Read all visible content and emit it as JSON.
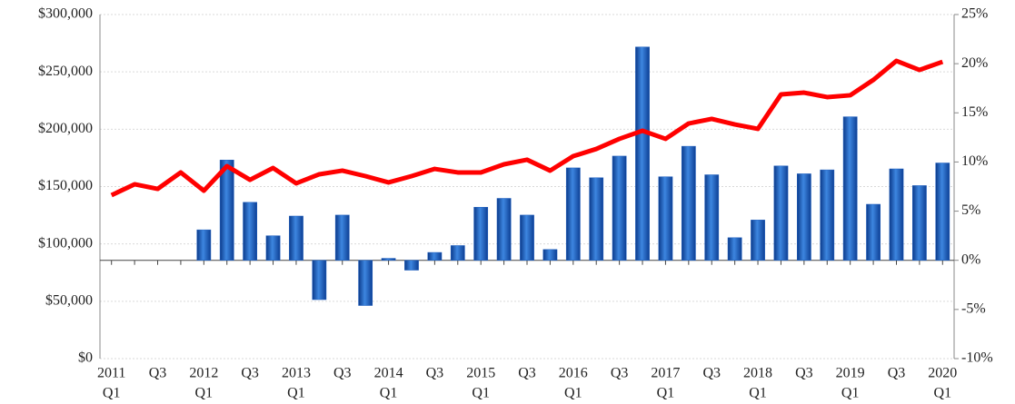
{
  "chart_data": {
    "type": "bar-line",
    "categories": [
      "Q1",
      null,
      "Q3",
      null,
      "Q1",
      null,
      "Q3",
      null,
      "Q1",
      null,
      "Q3",
      null,
      "Q1",
      null,
      "Q3",
      null,
      "Q1",
      null,
      "Q3",
      null,
      "Q1",
      null,
      "Q3",
      null,
      "Q1",
      null,
      "Q3",
      null,
      "Q1",
      null,
      "Q3",
      null,
      "Q1",
      null,
      "Q3",
      null,
      "Q1"
    ],
    "year_labels": [
      "2011",
      null,
      null,
      null,
      "2012",
      null,
      null,
      null,
      "2013",
      null,
      null,
      null,
      "2014",
      null,
      null,
      null,
      "2015",
      null,
      null,
      null,
      "2016",
      null,
      null,
      null,
      "2017",
      null,
      null,
      null,
      "2018",
      null,
      null,
      null,
      "2019",
      null,
      null,
      null,
      "2020"
    ],
    "series": [
      {
        "type": "bar",
        "color": "#1f5fbf",
        "axis": "y2",
        "values": [
          null,
          null,
          null,
          null,
          3.1,
          10.2,
          5.9,
          2.5,
          4.5,
          -4.0,
          4.6,
          -4.6,
          0.2,
          -1.0,
          0.8,
          1.5,
          5.4,
          6.3,
          4.6,
          1.1,
          9.4,
          8.4,
          10.6,
          21.7,
          8.5,
          11.6,
          8.7,
          2.3,
          4.1,
          9.6,
          8.8,
          9.2,
          14.6,
          5.7,
          9.3,
          7.6,
          9.9
        ]
      },
      {
        "type": "line",
        "color": "#ff0000",
        "values": [
          142500,
          152000,
          148000,
          162300,
          146400,
          167800,
          155900,
          166200,
          152800,
          160700,
          163900,
          159100,
          153600,
          159100,
          165400,
          162300,
          162300,
          169400,
          173400,
          163900,
          176500,
          182800,
          191600,
          198700,
          191600,
          205000,
          209000,
          204200,
          200300,
          230300,
          231900,
          228000,
          229600,
          243000,
          259600,
          251700,
          258800
        ]
      }
    ],
    "ylim": [
      0,
      300000
    ],
    "yticks": [
      {
        "value": 0,
        "label": "$0"
      },
      {
        "value": 50000,
        "label": "$50,000"
      },
      {
        "value": 100000,
        "label": "$100,000"
      },
      {
        "value": 150000,
        "label": "$150,000"
      },
      {
        "value": 200000,
        "label": "$200,000"
      },
      {
        "value": 250000,
        "label": "$250,000"
      },
      {
        "value": 300000,
        "label": "$300,000"
      }
    ],
    "y2lim": [
      -10,
      25
    ],
    "y2ticks": [
      {
        "value": -10,
        "label": "-10%"
      },
      {
        "value": -5,
        "label": "-5%"
      },
      {
        "value": 0,
        "label": "0%"
      },
      {
        "value": 5,
        "label": "5%"
      },
      {
        "value": 10,
        "label": "10%"
      },
      {
        "value": 15,
        "label": "15%"
      },
      {
        "value": 20,
        "label": "20%"
      },
      {
        "value": 25,
        "label": "25%"
      }
    ],
    "grid": true
  }
}
